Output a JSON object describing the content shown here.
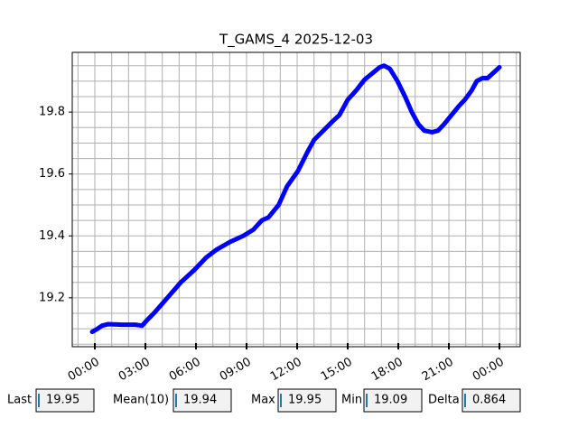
{
  "chart_data": {
    "type": "line",
    "title": "T_GAMS_4 2025-12-03",
    "x": [
      -0.16,
      0.16,
      0.43,
      0.8,
      1.6,
      2.4,
      2.8,
      3.05,
      3.5,
      4.3,
      5.1,
      5.9,
      6.6,
      7.2,
      8.0,
      8.8,
      9.4,
      9.9,
      10.3,
      10.9,
      11.4,
      12.05,
      12.6,
      13.0,
      13.55,
      14.1,
      14.5,
      15.0,
      15.5,
      16.0,
      16.45,
      16.9,
      17.15,
      17.5,
      17.95,
      18.4,
      18.8,
      19.2,
      19.55,
      20.0,
      20.35,
      20.7,
      21.15,
      21.6,
      21.95,
      22.35,
      22.65,
      23.0,
      23.3,
      23.7,
      24.0
    ],
    "series": [
      {
        "name": "T_GAMS_4",
        "color": "#0000ff",
        "values": [
          19.09,
          19.1,
          19.11,
          19.115,
          19.113,
          19.113,
          19.11,
          19.125,
          19.15,
          19.2,
          19.25,
          19.29,
          19.33,
          19.355,
          19.38,
          19.4,
          19.42,
          19.45,
          19.46,
          19.5,
          19.56,
          19.61,
          19.67,
          19.71,
          19.74,
          19.77,
          19.79,
          19.84,
          19.87,
          19.905,
          19.925,
          19.945,
          19.95,
          19.94,
          19.9,
          19.85,
          19.8,
          19.76,
          19.74,
          19.735,
          19.74,
          19.76,
          19.79,
          19.82,
          19.84,
          19.87,
          19.9,
          19.91,
          19.91,
          19.93,
          19.945
        ]
      }
    ],
    "xlim": [
      -1.34,
      25.23
    ],
    "ylim": [
      19.042,
      19.993
    ],
    "xticks": [
      {
        "value": 0,
        "label": "00:00"
      },
      {
        "value": 3,
        "label": "03:00"
      },
      {
        "value": 6,
        "label": "06:00"
      },
      {
        "value": 9,
        "label": "09:00"
      },
      {
        "value": 12,
        "label": "12:00"
      },
      {
        "value": 15,
        "label": "15:00"
      },
      {
        "value": 18,
        "label": "18:00"
      },
      {
        "value": 21,
        "label": "21:00"
      },
      {
        "value": 24,
        "label": "00:00"
      }
    ],
    "yticks": [
      19.2,
      19.4,
      19.6,
      19.8
    ],
    "grid": true
  },
  "readouts": [
    {
      "label": "Last",
      "value": "19.95"
    },
    {
      "label": "Mean(10)",
      "value": "19.94"
    },
    {
      "label": "Max",
      "value": "19.95"
    },
    {
      "label": "Min",
      "value": "19.09"
    },
    {
      "label": "Delta",
      "value": "0.864"
    }
  ]
}
